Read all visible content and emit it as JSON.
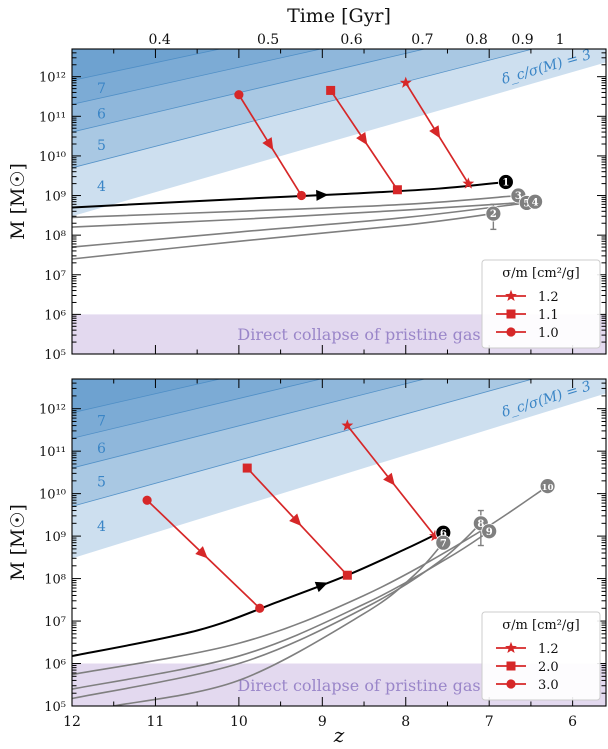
{
  "figure": {
    "top_axis_label": "Time [Gyr]",
    "top_axis_ticks": [
      {
        "label": "0.4",
        "z": 10.95
      },
      {
        "label": "0.5",
        "z": 9.65
      },
      {
        "label": "0.6",
        "z": 8.65
      },
      {
        "label": "0.7",
        "z": 7.8
      },
      {
        "label": "0.8",
        "z": 7.15
      },
      {
        "label": "0.9",
        "z": 6.6
      },
      {
        "label": "1",
        "z": 6.15
      }
    ],
    "xlabel": "z",
    "colors": {
      "blue_band": "#4a8cc4",
      "blue_text": "#3a85c6",
      "purple_band": "#e3d9ef",
      "purple_text": "#9a86c9",
      "red": "#d62728",
      "gray": "#7f7f7f",
      "black": "#000000"
    }
  },
  "chart_data": [
    {
      "type": "line",
      "panel": "top",
      "ylabel": "M [M☉]",
      "xlim": [
        12,
        5.6
      ],
      "ylim": [
        100000,
        5000000000000
      ],
      "yscale": "log",
      "xtick_labels_shown": false,
      "yticks": [
        {
          "value": 100000,
          "label": "10⁵"
        },
        {
          "value": 1000000,
          "label": "10⁶"
        },
        {
          "value": 10000000,
          "label": "10⁷"
        },
        {
          "value": 100000000,
          "label": "10⁸"
        },
        {
          "value": 1000000000,
          "label": "10⁹"
        },
        {
          "value": 10000000000,
          "label": "10¹⁰"
        },
        {
          "value": 100000000000,
          "label": "10¹¹"
        },
        {
          "value": 1000000000000,
          "label": "10¹²"
        }
      ],
      "sigma_bands": {
        "levels": [
          3,
          4,
          5,
          6,
          7
        ],
        "labels": [
          "4",
          "5",
          "6",
          "7"
        ],
        "annotation": "δ_c/σ(M) = 3",
        "boundaries": [
          {
            "level": 3,
            "x": [
              12,
              5.6
            ],
            "y": [
              300000000,
              2300000000000
            ]
          },
          {
            "level": 4,
            "x": [
              12,
              5.6
            ],
            "y": [
              5000000000,
              15000000000000
            ]
          },
          {
            "level": 5,
            "x": [
              12,
              5.6
            ],
            "y": [
              40000000000,
              60000000000000
            ]
          },
          {
            "level": 6,
            "x": [
              12,
              5.6
            ],
            "y": [
              200000000000,
              200000000000000
            ]
          },
          {
            "level": 7,
            "x": [
              12,
              5.6
            ],
            "y": [
              800000000000,
              600000000000000
            ]
          }
        ]
      },
      "direct_collapse": {
        "label": "Direct collapse of pristine gas",
        "ymin": 100000,
        "ymax": 1000000
      },
      "legend": {
        "title": "σ/m [cm²/g]",
        "position": "lower-right"
      },
      "main_track": {
        "x": [
          12,
          9.6,
          8.7,
          7.6,
          6.8
        ],
        "y": [
          500000000,
          900000000,
          1100000000,
          1500000000,
          2200000000
        ],
        "arrow_at": 9.0
      },
      "gray_tracks": [
        {
          "label": "3",
          "x": [
            12,
            10,
            8,
            6.65
          ],
          "y": [
            280000000,
            400000000,
            600000000,
            1000000000
          ]
        },
        {
          "label": "4",
          "x": [
            12,
            10,
            8,
            6.45
          ],
          "y": [
            160000000,
            250000000,
            430000000,
            700000000
          ]
        },
        {
          "label": "5",
          "x": [
            12,
            10,
            8,
            6.55
          ],
          "y": [
            50000000,
            120000000,
            280000000,
            650000000
          ]
        },
        {
          "label": "2",
          "x": [
            12,
            10,
            8,
            6.95
          ],
          "y": [
            25000000,
            70000000,
            180000000,
            350000000
          ]
        }
      ],
      "markers": [
        {
          "label": "1",
          "z": 6.8,
          "m": 2200000000,
          "color": "black"
        },
        {
          "label": "3",
          "z": 6.65,
          "m": 1000000000,
          "color": "gray"
        },
        {
          "label": "5",
          "z": 6.55,
          "m": 650000000,
          "color": "gray"
        },
        {
          "label": "4",
          "z": 6.45,
          "m": 700000000,
          "color": "gray"
        },
        {
          "label": "2",
          "z": 6.95,
          "m": 350000000,
          "color": "gray",
          "err": [
            140000000,
            600000000
          ]
        }
      ],
      "series": [
        {
          "name": "1.2",
          "marker": "star",
          "x": [
            8.0,
            7.25
          ],
          "y": [
            700000000000,
            2000000000
          ]
        },
        {
          "name": "1.1",
          "marker": "square",
          "x": [
            8.9,
            8.1
          ],
          "y": [
            450000000000,
            1400000000
          ]
        },
        {
          "name": "1.0",
          "marker": "circle",
          "x": [
            10.0,
            9.25
          ],
          "y": [
            350000000000,
            1000000000
          ]
        }
      ]
    },
    {
      "type": "line",
      "panel": "bottom",
      "ylabel": "M [M☉]",
      "xlim": [
        12,
        5.6
      ],
      "ylim": [
        100000,
        5000000000000
      ],
      "yscale": "log",
      "xticks": [
        {
          "value": 12,
          "label": "12"
        },
        {
          "value": 11,
          "label": "11"
        },
        {
          "value": 10,
          "label": "10"
        },
        {
          "value": 9,
          "label": "9"
        },
        {
          "value": 8,
          "label": "8"
        },
        {
          "value": 7,
          "label": "7"
        },
        {
          "value": 6,
          "label": "6"
        }
      ],
      "yticks": [
        {
          "value": 100000,
          "label": "10⁵"
        },
        {
          "value": 1000000,
          "label": "10⁶"
        },
        {
          "value": 10000000,
          "label": "10⁷"
        },
        {
          "value": 100000000,
          "label": "10⁸"
        },
        {
          "value": 1000000000,
          "label": "10⁹"
        },
        {
          "value": 10000000000,
          "label": "10¹⁰"
        },
        {
          "value": 100000000000,
          "label": "10¹¹"
        },
        {
          "value": 1000000000000,
          "label": "10¹²"
        }
      ],
      "sigma_bands": {
        "levels": [
          3,
          4,
          5,
          6,
          7
        ],
        "labels": [
          "4",
          "5",
          "6",
          "7"
        ],
        "annotation": "δ_c/σ(M) = 3",
        "boundaries": [
          {
            "level": 3,
            "x": [
              12,
              5.6
            ],
            "y": [
              300000000,
              2300000000000
            ]
          },
          {
            "level": 4,
            "x": [
              12,
              5.6
            ],
            "y": [
              5000000000,
              15000000000000
            ]
          },
          {
            "level": 5,
            "x": [
              12,
              5.6
            ],
            "y": [
              40000000000,
              60000000000000
            ]
          },
          {
            "level": 6,
            "x": [
              12,
              5.6
            ],
            "y": [
              200000000000,
              200000000000000
            ]
          },
          {
            "level": 7,
            "x": [
              12,
              5.6
            ],
            "y": [
              800000000000,
              600000000000000
            ]
          }
        ]
      },
      "direct_collapse": {
        "label": "Direct collapse of pristine gas",
        "ymin": 100000,
        "ymax": 1000000
      },
      "legend": {
        "title": "σ/m [cm²/g]",
        "position": "lower-right"
      },
      "main_track": {
        "x": [
          12,
          10.5,
          9.5,
          8.7,
          8.0,
          7.6
        ],
        "y": [
          1500000,
          6000000,
          30000000,
          120000000,
          500000000,
          1200000000
        ],
        "arrow_at": 9.0
      },
      "gray_tracks": [
        {
          "label": "10",
          "x": [
            12,
            10,
            8.5,
            7.2,
            6.3
          ],
          "y": [
            550000,
            3000000,
            40000000,
            1000000000,
            15000000000
          ]
        },
        {
          "label": "9",
          "x": [
            12,
            10,
            8.5,
            7.5,
            7.0
          ],
          "y": [
            250000,
            1500000,
            25000000,
            300000000,
            1300000000
          ]
        },
        {
          "label": "8",
          "x": [
            12,
            10,
            8.5,
            7.6,
            7.1
          ],
          "y": [
            150000,
            1000000,
            20000000,
            250000000,
            2000000000
          ]
        },
        {
          "label": "7",
          "x": [
            11.5,
            10,
            8.5,
            7.9,
            7.55
          ],
          "y": [
            100000,
            400000,
            15000000,
            120000000,
            700000000
          ]
        }
      ],
      "markers": [
        {
          "label": "6",
          "z": 7.55,
          "m": 1200000000,
          "color": "black"
        },
        {
          "label": "7",
          "z": 7.55,
          "m": 700000000,
          "color": "gray"
        },
        {
          "label": "8",
          "z": 7.1,
          "m": 2000000000,
          "color": "gray",
          "err": [
            600000000,
            4000000000
          ]
        },
        {
          "label": "9",
          "z": 7.0,
          "m": 1300000000,
          "color": "gray"
        },
        {
          "label": "10",
          "z": 6.3,
          "m": 15000000000,
          "color": "gray"
        }
      ],
      "series": [
        {
          "name": "1.2",
          "marker": "star",
          "x": [
            8.7,
            7.65
          ],
          "y": [
            400000000000,
            1000000000
          ]
        },
        {
          "name": "2.0",
          "marker": "square",
          "x": [
            9.9,
            8.7
          ],
          "y": [
            40000000000,
            120000000
          ]
        },
        {
          "name": "3.0",
          "marker": "circle",
          "x": [
            11.1,
            9.75
          ],
          "y": [
            7000000000,
            20000000
          ]
        }
      ]
    }
  ]
}
